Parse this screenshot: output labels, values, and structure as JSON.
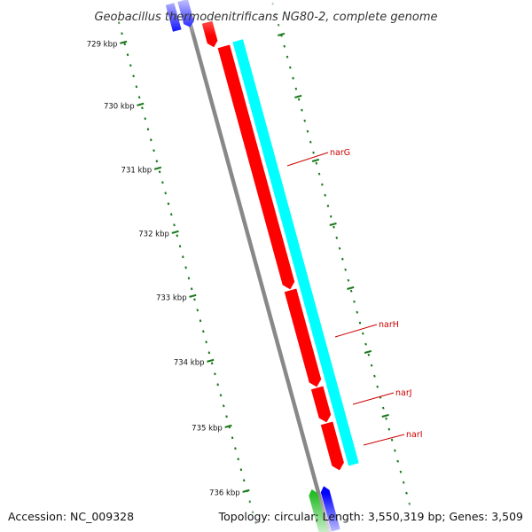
{
  "title": "Geobacillus thermodenitrificans NG80-2, complete genome",
  "footer": {
    "accession": "Accession: NC_009328",
    "summary": "Topology: circular; Length: 3,550,319 bp; Genes: 3,509"
  },
  "scale_labels": [
    {
      "text": "729 kbp",
      "kbp": 729
    },
    {
      "text": "730 kbp",
      "kbp": 730
    },
    {
      "text": "731 kbp",
      "kbp": 731
    },
    {
      "text": "732 kbp",
      "kbp": 732
    },
    {
      "text": "733 kbp",
      "kbp": 733
    },
    {
      "text": "734 kbp",
      "kbp": 734
    },
    {
      "text": "735 kbp",
      "kbp": 735
    },
    {
      "text": "736 kbp",
      "kbp": 736
    }
  ],
  "genes": [
    {
      "name": "narG",
      "strand": "+",
      "color": "#ff0000"
    },
    {
      "name": "narH",
      "strand": "+",
      "color": "#ff0000"
    },
    {
      "name": "narJ",
      "strand": "+",
      "color": "#ff0000"
    },
    {
      "name": "narI",
      "strand": "+",
      "color": "#ff0000"
    }
  ],
  "colors": {
    "cds_forward": "#ff0000",
    "cds_track_secondary": "#00ffff",
    "cds_reverse": "#0000ff",
    "cds_other": "#22bb22",
    "backbone": "#888888",
    "scale_ticks": "#1a7a1a",
    "gene_label": "#cc0000"
  }
}
